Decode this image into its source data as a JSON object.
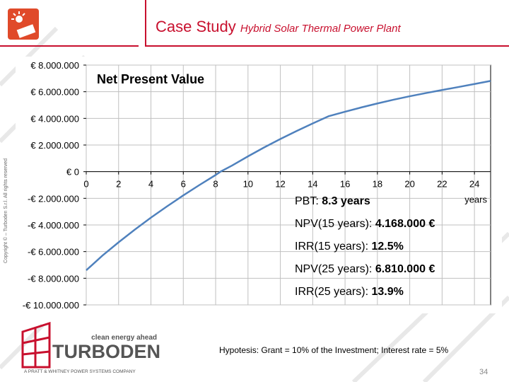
{
  "header": {
    "title": "Case Study",
    "subtitle": "Hybrid Solar Thermal Power Plant"
  },
  "copyright": "Copyright © – Turboden S.r.l. All rights reserved",
  "colors": {
    "brand_red": "#c8102e",
    "logo_orange": "#e04a2a",
    "series_blue": "#4f81bd"
  },
  "icons": {
    "logo": "solar-sun-icon"
  },
  "chart_data": {
    "type": "line",
    "title": "Net Present Value",
    "xlabel": "years",
    "ylabel": "",
    "xlim": [
      0,
      25
    ],
    "ylim": [
      -10000000,
      8000000
    ],
    "x_ticks": [
      0,
      2,
      4,
      6,
      8,
      10,
      12,
      14,
      16,
      18,
      20,
      22,
      24
    ],
    "x_tick_labels": [
      "0",
      "2",
      "4",
      "6",
      "8",
      "10",
      "12",
      "14",
      "16",
      "18",
      "20",
      "22",
      "24"
    ],
    "y_ticks": [
      8000000,
      6000000,
      4000000,
      2000000,
      0,
      -2000000,
      -4000000,
      -6000000,
      -8000000,
      -10000000
    ],
    "y_tick_labels": [
      "€ 8.000.000",
      "€ 6.000.000",
      "€ 4.000.000",
      "€ 2.000.000",
      "€ 0",
      "-€ 2.000.000",
      "-€ 4.000.000",
      "-€ 6.000.000",
      "-€ 8.000.000",
      "-€ 10.000.000"
    ],
    "grid": true,
    "legend": "none",
    "series": [
      {
        "x": [
          0,
          1,
          2,
          3,
          4,
          5,
          6,
          7,
          8,
          8.3,
          9,
          10,
          11,
          12,
          13,
          14,
          15,
          16,
          17,
          18,
          19,
          20,
          21,
          22,
          23,
          24,
          25
        ],
        "values": [
          -7400000,
          -6300000,
          -5300000,
          -4350000,
          -3450000,
          -2600000,
          -1780000,
          -1000000,
          -250000,
          0,
          450000,
          1150000,
          1820000,
          2450000,
          3050000,
          3620000,
          4168000,
          4500000,
          4820000,
          5120000,
          5400000,
          5660000,
          5900000,
          6130000,
          6350000,
          6580000,
          6810000
        ]
      }
    ],
    "annotations": [
      {
        "label": "PBT: ",
        "value": "8.3 years"
      },
      {
        "label": "NPV(15 years): ",
        "value": "4.168.000 €"
      },
      {
        "label": "IRR(15 years): ",
        "value": "12.5%"
      },
      {
        "label": "NPV(25 years): ",
        "value": "6.810.000 €"
      },
      {
        "label": "IRR(25 years): ",
        "value": "13.9%"
      }
    ]
  },
  "footer": {
    "tagline": "clean energy ahead",
    "brand": "TURBODEN",
    "company_line": "A PRATT & WHITNEY POWER SYSTEMS COMPANY",
    "hypothesis": "Hypotesis: Grant = 10% of the Investment; Interest rate = 5%",
    "page_number": "34"
  }
}
